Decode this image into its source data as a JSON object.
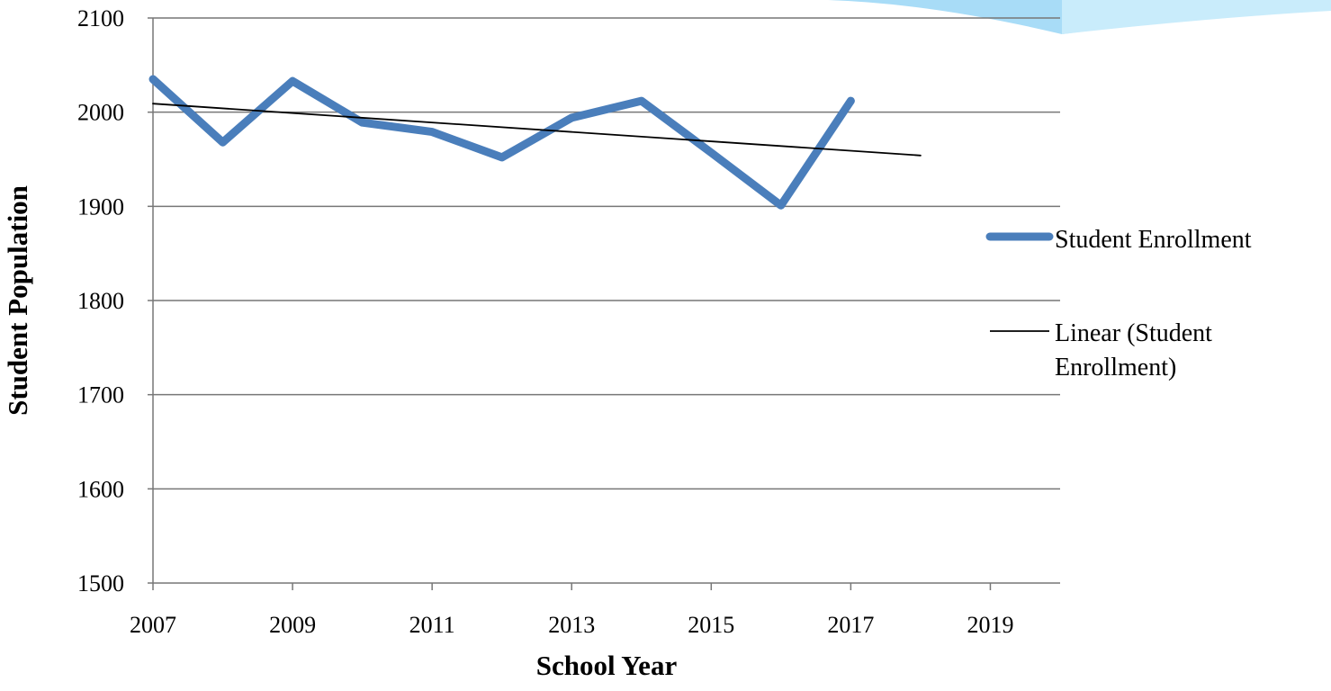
{
  "chart_data": {
    "type": "line",
    "x_label": "School Year",
    "y_label": "Student Population",
    "series": [
      {
        "name": "Student Enrollment",
        "color": "#4a7ebb",
        "x": [
          2007,
          2008,
          2009,
          2010,
          2011,
          2012,
          2013,
          2014,
          2015,
          2016,
          2017
        ],
        "values": [
          2035,
          1968,
          2033,
          1989,
          1979,
          1952,
          1994,
          2012,
          1957,
          1901,
          2012
        ]
      },
      {
        "name": "Linear (Student Enrollment)",
        "color": "#000000",
        "x": [
          2007,
          2018
        ],
        "values": [
          2009,
          1954
        ]
      }
    ],
    "xlim": [
      2007,
      2020
    ],
    "xticks": [
      2007,
      2009,
      2011,
      2013,
      2015,
      2017,
      2019
    ],
    "ylim": [
      1500,
      2100
    ],
    "yticks": [
      1500,
      1600,
      1700,
      1800,
      1900,
      2000,
      2100
    ],
    "grid": true,
    "legend": "right"
  }
}
